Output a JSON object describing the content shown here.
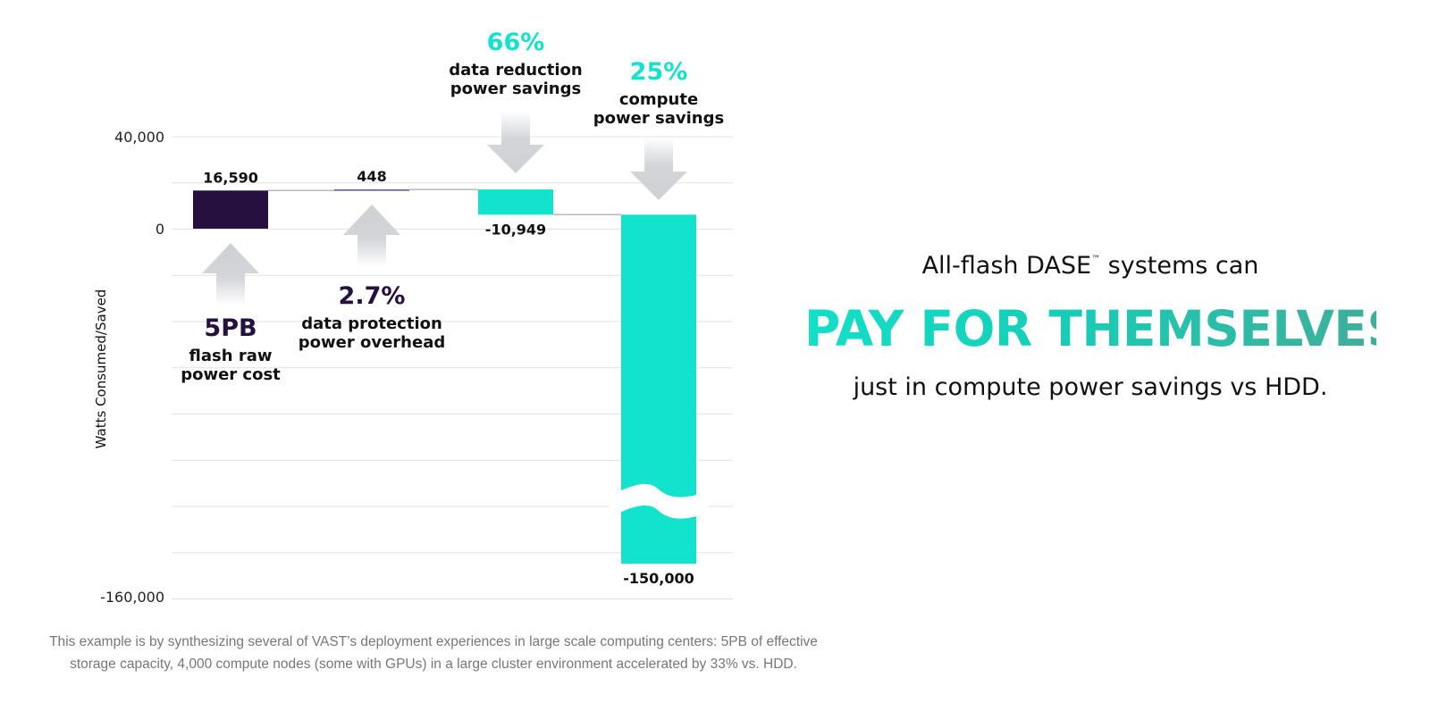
{
  "chart_data": {
    "type": "waterfall",
    "ylabel": "Watts Consumed/Saved",
    "ylim": [
      -160000,
      40000
    ],
    "y_ticks": [
      {
        "value": 40000,
        "label": "40,000"
      },
      {
        "value": 0,
        "label": "0"
      },
      {
        "value": -160000,
        "label": "-160,000"
      }
    ],
    "gridlines": true,
    "axis_break_on": "compute power savings",
    "steps": [
      {
        "key": "flash",
        "value": 16590,
        "label": "16,590",
        "color": "#26103f",
        "annotation": {
          "pct": "5PB",
          "desc": [
            "flash raw",
            "power cost"
          ],
          "pct_color": "#26103f",
          "arrow": "up-below"
        }
      },
      {
        "key": "protection",
        "value": 448,
        "label": "448",
        "color": "#5d4c87",
        "annotation": {
          "pct": "2.7%",
          "desc": [
            "data protection",
            "power overhead"
          ],
          "pct_color": "#26103f",
          "arrow": "up-below"
        }
      },
      {
        "key": "reduction",
        "value": -10949,
        "label": "-10,949",
        "color": "#12e3cc",
        "annotation": {
          "pct": "66%",
          "desc": [
            "data reduction",
            "power savings"
          ],
          "pct_color": "#12e3cc",
          "arrow": "down-above"
        }
      },
      {
        "key": "compute",
        "value": -150000,
        "label": "-150,000",
        "color": "#12e3cc",
        "annotation": {
          "pct": "25%",
          "desc": [
            "compute",
            "power savings"
          ],
          "pct_color": "#12e3cc",
          "arrow": "down-above"
        }
      }
    ]
  },
  "hero": {
    "lead": "All-flash DASE",
    "tm": "™",
    "lead_end": " systems can",
    "title": "PAY FOR THEMSELVES",
    "sub": "just in compute power savings vs HDD."
  },
  "footnote": {
    "line1": "This example is by synthesizing several of VAST’s deployment experiences in large scale computing centers: 5PB of effective",
    "line2": "storage capacity, 4,000 compute nodes (some with GPUs) in a large cluster environment accelerated by 33% vs. HDD."
  },
  "colors": {
    "accent": "#12e3cc",
    "dark": "#26103f",
    "arrow": "#d3d4d8",
    "grid": "#e2e2e2"
  }
}
